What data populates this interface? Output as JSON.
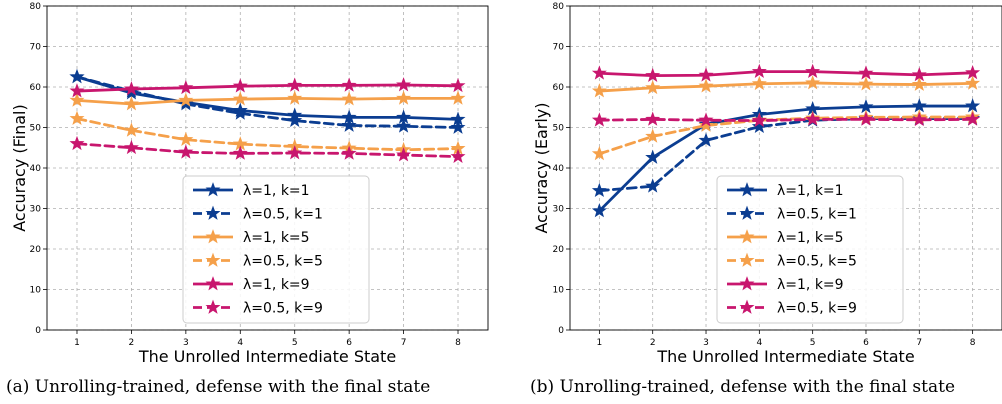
{
  "chart_data": [
    {
      "type": "line",
      "caption": "(a) Unrolling-trained, defense with the final state",
      "xlabel": "The Unrolled Intermediate State",
      "ylabel": "Accuracy (Final)",
      "x": [
        1,
        2,
        3,
        4,
        5,
        6,
        7,
        8
      ],
      "xticks": [
        "1",
        "2",
        "3",
        "4",
        "5",
        "6",
        "7",
        "8"
      ],
      "yticks": [
        "0",
        "10",
        "20",
        "30",
        "40",
        "50",
        "60",
        "70",
        "80"
      ],
      "ylim": [
        0,
        80
      ],
      "grid": true,
      "legend_position": "lower-center",
      "series": [
        {
          "name": "λ=1, k=1",
          "color": "#0b3d91",
          "dash": "solid",
          "values": [
            62.5,
            58.5,
            56.2,
            54.2,
            53.0,
            52.5,
            52.5,
            52.0
          ]
        },
        {
          "name": "λ=0.5, k=1",
          "color": "#0b3d91",
          "dash": "dashed",
          "values": [
            62.5,
            59.0,
            55.8,
            53.5,
            51.7,
            50.5,
            50.3,
            50.0
          ]
        },
        {
          "name": "λ=1, k=5",
          "color": "#f5a04a",
          "dash": "solid",
          "values": [
            56.7,
            55.8,
            56.7,
            57.0,
            57.2,
            57.0,
            57.2,
            57.2
          ]
        },
        {
          "name": "λ=0.5, k=5",
          "color": "#f5a04a",
          "dash": "dashed",
          "values": [
            52.2,
            49.3,
            47.0,
            45.9,
            45.3,
            44.9,
            44.5,
            44.8
          ]
        },
        {
          "name": "λ=1, k=9",
          "color": "#c8166e",
          "dash": "solid",
          "values": [
            59.0,
            59.5,
            59.8,
            60.2,
            60.4,
            60.4,
            60.5,
            60.3
          ]
        },
        {
          "name": "λ=0.5, k=9",
          "color": "#c8166e",
          "dash": "dashed",
          "values": [
            46.0,
            45.0,
            43.9,
            43.6,
            43.7,
            43.6,
            43.2,
            42.8
          ]
        }
      ]
    },
    {
      "type": "line",
      "caption": "(b) Unrolling-trained, defense with the final state",
      "xlabel": "The Unrolled Intermediate State",
      "ylabel": "Accuracy (Early)",
      "x": [
        1,
        2,
        3,
        4,
        5,
        6,
        7,
        8
      ],
      "xticks": [
        "1",
        "2",
        "3",
        "4",
        "5",
        "6",
        "7",
        "8"
      ],
      "yticks": [
        "0",
        "10",
        "20",
        "30",
        "40",
        "50",
        "60",
        "70",
        "80"
      ],
      "ylim": [
        0,
        80
      ],
      "grid": true,
      "legend_position": "lower-center",
      "series": [
        {
          "name": "λ=1, k=1",
          "color": "#0b3d91",
          "dash": "solid",
          "values": [
            29.4,
            42.6,
            50.8,
            53.2,
            54.6,
            55.1,
            55.3,
            55.3
          ]
        },
        {
          "name": "λ=0.5, k=1",
          "color": "#0b3d91",
          "dash": "dashed",
          "values": [
            34.4,
            35.5,
            46.8,
            50.2,
            51.8,
            52.2,
            52.2,
            52.2
          ]
        },
        {
          "name": "λ=1, k=5",
          "color": "#f5a04a",
          "dash": "solid",
          "values": [
            59.0,
            59.8,
            60.2,
            60.8,
            61.0,
            60.7,
            60.6,
            60.9
          ]
        },
        {
          "name": "λ=0.5, k=5",
          "color": "#f5a04a",
          "dash": "dashed",
          "values": [
            43.5,
            47.8,
            50.5,
            51.8,
            52.3,
            52.5,
            52.6,
            52.6
          ]
        },
        {
          "name": "λ=1, k=9",
          "color": "#c8166e",
          "dash": "solid",
          "values": [
            63.4,
            62.8,
            62.9,
            63.8,
            63.8,
            63.4,
            63.0,
            63.5
          ]
        },
        {
          "name": "λ=0.5, k=9",
          "color": "#c8166e",
          "dash": "dashed",
          "values": [
            51.8,
            52.0,
            51.8,
            51.7,
            52.0,
            52.0,
            51.9,
            52.0
          ]
        }
      ]
    }
  ]
}
